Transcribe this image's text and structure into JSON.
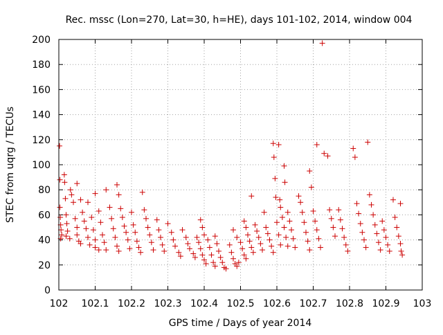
{
  "chart_data": {
    "type": "scatter",
    "title": "Rec. mssc (Lon=270, Lat=30, h=HE), days 101-102, 2014, window 004",
    "xlabel": "GPS time / Days of year 2014",
    "ylabel": "STEC from uqrg / TECUs",
    "xlim": [
      102,
      103
    ],
    "ylim": [
      0,
      200
    ],
    "x_ticks": [
      "102",
      "102.1",
      "102.2",
      "102.3",
      "102.4",
      "102.5",
      "102.6",
      "102.7",
      "102.8",
      "102.9",
      "103"
    ],
    "y_ticks": [
      "0",
      "20",
      "40",
      "60",
      "80",
      "100",
      "120",
      "140",
      "160",
      "180",
      "200"
    ],
    "grid": true,
    "legend": "none",
    "marker": "plus",
    "color": "#cc0000",
    "points": [
      [
        102.002,
        115
      ],
      [
        102.003,
        88
      ],
      [
        102.003,
        66
      ],
      [
        102.004,
        58
      ],
      [
        102.005,
        52
      ],
      [
        102.006,
        48
      ],
      [
        102.008,
        44
      ],
      [
        102.005,
        41
      ],
      [
        102.015,
        92
      ],
      [
        102.016,
        86
      ],
      [
        102.018,
        73
      ],
      [
        102.02,
        60
      ],
      [
        102.022,
        53
      ],
      [
        102.024,
        47
      ],
      [
        102.02,
        43
      ],
      [
        102.03,
        41
      ],
      [
        102.032,
        80
      ],
      [
        102.035,
        76
      ],
      [
        102.04,
        70
      ],
      [
        102.045,
        57
      ],
      [
        102.05,
        50
      ],
      [
        102.05,
        44
      ],
      [
        102.055,
        39
      ],
      [
        102.06,
        37
      ],
      [
        102.05,
        85
      ],
      [
        102.06,
        72
      ],
      [
        102.065,
        62
      ],
      [
        102.07,
        55
      ],
      [
        102.075,
        49
      ],
      [
        102.08,
        42
      ],
      [
        102.085,
        36
      ],
      [
        102.08,
        70
      ],
      [
        102.09,
        58
      ],
      [
        102.095,
        48
      ],
      [
        102.1,
        40
      ],
      [
        102.1,
        34
      ],
      [
        102.11,
        32
      ],
      [
        102.1,
        77
      ],
      [
        102.11,
        63
      ],
      [
        102.115,
        54
      ],
      [
        102.12,
        44
      ],
      [
        102.125,
        38
      ],
      [
        102.13,
        32
      ],
      [
        102.13,
        80
      ],
      [
        102.14,
        66
      ],
      [
        102.145,
        57
      ],
      [
        102.15,
        49
      ],
      [
        102.155,
        42
      ],
      [
        102.16,
        35
      ],
      [
        102.165,
        31
      ],
      [
        102.16,
        84
      ],
      [
        102.165,
        76
      ],
      [
        102.17,
        65
      ],
      [
        102.175,
        58
      ],
      [
        102.18,
        51
      ],
      [
        102.185,
        46
      ],
      [
        102.19,
        40
      ],
      [
        102.195,
        33
      ],
      [
        102.2,
        62
      ],
      [
        102.205,
        52
      ],
      [
        102.21,
        46
      ],
      [
        102.215,
        39
      ],
      [
        102.22,
        34
      ],
      [
        102.225,
        30
      ],
      [
        102.23,
        78
      ],
      [
        102.235,
        64
      ],
      [
        102.24,
        57
      ],
      [
        102.245,
        50
      ],
      [
        102.25,
        44
      ],
      [
        102.255,
        38
      ],
      [
        102.26,
        32
      ],
      [
        102.27,
        56
      ],
      [
        102.275,
        48
      ],
      [
        102.28,
        42
      ],
      [
        102.285,
        36
      ],
      [
        102.29,
        31
      ],
      [
        102.3,
        53
      ],
      [
        102.31,
        46
      ],
      [
        102.315,
        40
      ],
      [
        102.32,
        35
      ],
      [
        102.33,
        30
      ],
      [
        102.335,
        27
      ],
      [
        102.34,
        48
      ],
      [
        102.35,
        42
      ],
      [
        102.355,
        37
      ],
      [
        102.36,
        33
      ],
      [
        102.37,
        29
      ],
      [
        102.375,
        26
      ],
      [
        102.38,
        42
      ],
      [
        102.385,
        38
      ],
      [
        102.39,
        33
      ],
      [
        102.395,
        28
      ],
      [
        102.4,
        24
      ],
      [
        102.405,
        21
      ],
      [
        102.39,
        56
      ],
      [
        102.395,
        50
      ],
      [
        102.4,
        44
      ],
      [
        102.41,
        40
      ],
      [
        102.415,
        34
      ],
      [
        102.42,
        28
      ],
      [
        102.425,
        22
      ],
      [
        102.43,
        19
      ],
      [
        102.43,
        43
      ],
      [
        102.435,
        37
      ],
      [
        102.44,
        31
      ],
      [
        102.445,
        26
      ],
      [
        102.45,
        22
      ],
      [
        102.455,
        18
      ],
      [
        102.46,
        17
      ],
      [
        102.47,
        36
      ],
      [
        102.475,
        30
      ],
      [
        102.48,
        25
      ],
      [
        102.485,
        21
      ],
      [
        102.49,
        19
      ],
      [
        102.495,
        22
      ],
      [
        102.48,
        48
      ],
      [
        102.49,
        42
      ],
      [
        102.5,
        38
      ],
      [
        102.505,
        33
      ],
      [
        102.51,
        28
      ],
      [
        102.515,
        25
      ],
      [
        102.51,
        55
      ],
      [
        102.515,
        50
      ],
      [
        102.52,
        44
      ],
      [
        102.525,
        39
      ],
      [
        102.53,
        34
      ],
      [
        102.535,
        30
      ],
      [
        102.53,
        75
      ],
      [
        102.54,
        52
      ],
      [
        102.545,
        47
      ],
      [
        102.55,
        42
      ],
      [
        102.555,
        37
      ],
      [
        102.56,
        32
      ],
      [
        102.565,
        62
      ],
      [
        102.57,
        50
      ],
      [
        102.575,
        45
      ],
      [
        102.58,
        40
      ],
      [
        102.585,
        35
      ],
      [
        102.59,
        30
      ],
      [
        102.59,
        117
      ],
      [
        102.592,
        106
      ],
      [
        102.595,
        89
      ],
      [
        102.597,
        74
      ],
      [
        102.6,
        54
      ],
      [
        102.605,
        44
      ],
      [
        102.61,
        36
      ],
      [
        102.605,
        116
      ],
      [
        102.608,
        72
      ],
      [
        102.61,
        66
      ],
      [
        102.615,
        58
      ],
      [
        102.62,
        50
      ],
      [
        102.625,
        42
      ],
      [
        102.63,
        35
      ],
      [
        102.62,
        99
      ],
      [
        102.622,
        86
      ],
      [
        102.63,
        62
      ],
      [
        102.635,
        55
      ],
      [
        102.64,
        48
      ],
      [
        102.645,
        41
      ],
      [
        102.65,
        34
      ],
      [
        102.66,
        75
      ],
      [
        102.665,
        70
      ],
      [
        102.67,
        62
      ],
      [
        102.675,
        54
      ],
      [
        102.68,
        46
      ],
      [
        102.685,
        39
      ],
      [
        102.69,
        32
      ],
      [
        102.69,
        95
      ],
      [
        102.695,
        82
      ],
      [
        102.7,
        63
      ],
      [
        102.705,
        55
      ],
      [
        102.71,
        48
      ],
      [
        102.715,
        41
      ],
      [
        102.72,
        34
      ],
      [
        102.71,
        116
      ],
      [
        102.725,
        197
      ],
      [
        102.73,
        109
      ],
      [
        102.74,
        107
      ],
      [
        102.745,
        64
      ],
      [
        102.75,
        57
      ],
      [
        102.755,
        50
      ],
      [
        102.76,
        43
      ],
      [
        102.77,
        64
      ],
      [
        102.775,
        56
      ],
      [
        102.78,
        49
      ],
      [
        102.785,
        42
      ],
      [
        102.79,
        36
      ],
      [
        102.795,
        31
      ],
      [
        102.81,
        113
      ],
      [
        102.815,
        106
      ],
      [
        102.82,
        69
      ],
      [
        102.825,
        61
      ],
      [
        102.83,
        53
      ],
      [
        102.835,
        46
      ],
      [
        102.84,
        40
      ],
      [
        102.845,
        34
      ],
      [
        102.85,
        118
      ],
      [
        102.855,
        76
      ],
      [
        102.86,
        68
      ],
      [
        102.865,
        60
      ],
      [
        102.87,
        52
      ],
      [
        102.875,
        45
      ],
      [
        102.88,
        38
      ],
      [
        102.885,
        32
      ],
      [
        102.89,
        55
      ],
      [
        102.895,
        48
      ],
      [
        102.9,
        42
      ],
      [
        102.905,
        36
      ],
      [
        102.91,
        31
      ],
      [
        102.92,
        72
      ],
      [
        102.925,
        58
      ],
      [
        102.93,
        50
      ],
      [
        102.935,
        43
      ],
      [
        102.94,
        37
      ],
      [
        102.942,
        31
      ],
      [
        102.945,
        28
      ],
      [
        102.94,
        69
      ]
    ]
  }
}
